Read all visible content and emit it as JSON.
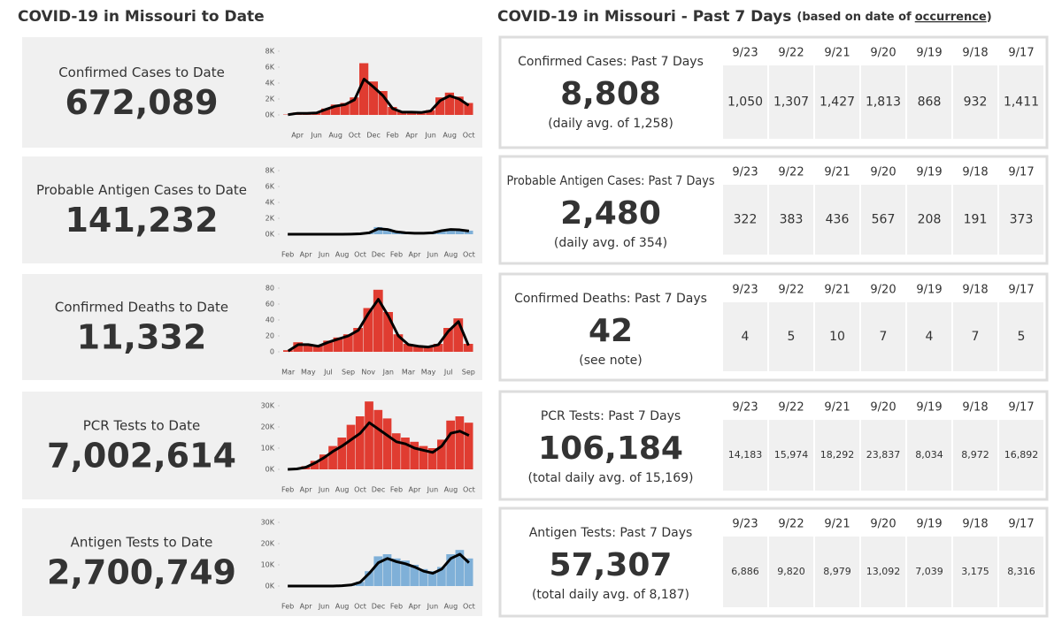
{
  "left_title": "COVID-19 in Missouri to Date",
  "right_title": "COVID-19 in Missouri - Past 7 Days",
  "right_subtitle": "(based on date of",
  "right_subtitle_link": "occurrence",
  "right_subtitle_end": ")",
  "panels": [
    {
      "label": "Confirmed Cases to Date",
      "total": "672,089"
    },
    {
      "label": "Probable Antigen Cases to Date",
      "total": "141,232"
    },
    {
      "label": "Confirmed Deaths to Date",
      "total": "11,332"
    },
    {
      "label": "PCR Tests to Date",
      "total": "7,002,614"
    },
    {
      "label": "Antigen Tests to Date",
      "total": "2,700,749"
    }
  ],
  "chart_data": [
    {
      "type": "bar",
      "categories": [
        null,
        "Apr",
        null,
        "Jun",
        null,
        "Aug",
        null,
        "Oct",
        null,
        "Dec",
        null,
        "Feb",
        null,
        "Apr",
        null,
        "Jun",
        null,
        "Aug",
        null,
        "Oct"
      ],
      "ylim": [
        0,
        8000
      ],
      "yticks": [
        {
          "value": 0,
          "label": "0K"
        },
        {
          "value": 2000,
          "label": "2K"
        },
        {
          "value": 4000,
          "label": "4K"
        },
        {
          "value": 6000,
          "label": "6K"
        },
        {
          "value": 8000,
          "label": "8K"
        }
      ],
      "series": [
        {
          "color": "#e03c31",
          "values": [
            50,
            300,
            250,
            300,
            800,
            1300,
            1500,
            2200,
            6500,
            4200,
            3000,
            1000,
            400,
            400,
            350,
            600,
            2200,
            2800,
            2300,
            1500
          ]
        },
        {
          "type": "line",
          "color": "#000000",
          "values": [
            30,
            200,
            200,
            250,
            700,
            1100,
            1300,
            1900,
            4500,
            3500,
            2400,
            800,
            350,
            350,
            300,
            500,
            1800,
            2400,
            2000,
            1200
          ]
        }
      ]
    },
    {
      "type": "bar",
      "categories": [
        "Feb",
        null,
        "Apr",
        null,
        "Jun",
        null,
        "Aug",
        null,
        "Oct",
        null,
        "Dec",
        null,
        "Feb",
        null,
        "Apr",
        null,
        "Jun",
        null,
        "Aug",
        null,
        "Oct"
      ],
      "ylim": [
        0,
        8000
      ],
      "yticks": [
        {
          "value": 0,
          "label": "0K"
        },
        {
          "value": 2000,
          "label": "2K"
        },
        {
          "value": 4000,
          "label": "4K"
        },
        {
          "value": 6000,
          "label": "6K"
        },
        {
          "value": 8000,
          "label": "8K"
        }
      ],
      "series": [
        {
          "color": "#7fb0d8",
          "values": [
            0,
            0,
            0,
            0,
            0,
            0,
            0,
            20,
            60,
            200,
            900,
            700,
            350,
            200,
            150,
            150,
            200,
            500,
            700,
            600,
            450
          ]
        },
        {
          "type": "line",
          "color": "#000000",
          "values": [
            0,
            0,
            0,
            0,
            0,
            0,
            0,
            15,
            50,
            180,
            700,
            600,
            300,
            180,
            130,
            130,
            180,
            450,
            600,
            550,
            400
          ]
        }
      ]
    },
    {
      "type": "bar",
      "categories": [
        "Mar",
        null,
        "May",
        null,
        "Jul",
        null,
        "Sep",
        null,
        "Nov",
        null,
        "Jan",
        null,
        "Mar",
        null,
        "May",
        null,
        "Jul",
        null,
        "Sep"
      ],
      "ylim": [
        0,
        80
      ],
      "yticks": [
        0,
        20,
        40,
        60,
        80
      ],
      "series": [
        {
          "color": "#e03c31",
          "values": [
            2,
            12,
            10,
            8,
            14,
            18,
            22,
            30,
            55,
            78,
            50,
            22,
            10,
            8,
            7,
            10,
            30,
            42,
            10
          ]
        },
        {
          "type": "line",
          "color": "#000000",
          "values": [
            1,
            9,
            9,
            7,
            12,
            16,
            20,
            27,
            48,
            66,
            45,
            20,
            9,
            7,
            6,
            9,
            26,
            38,
            8
          ]
        }
      ]
    },
    {
      "type": "bar",
      "categories": [
        "Feb",
        null,
        "Apr",
        null,
        "Jun",
        null,
        "Aug",
        null,
        "Oct",
        null,
        "Dec",
        null,
        "Feb",
        null,
        "Apr",
        null,
        "Jun",
        null,
        "Aug",
        null,
        "Oct"
      ],
      "ylim": [
        0,
        30000
      ],
      "yticks": [
        {
          "value": 0,
          "label": "0K"
        },
        {
          "value": 10000,
          "label": "10K"
        },
        {
          "value": 20000,
          "label": "20K"
        },
        {
          "value": 30000,
          "label": "30K"
        }
      ],
      "series": [
        {
          "color": "#e03c31",
          "values": [
            0,
            300,
            1500,
            4000,
            7000,
            11000,
            15000,
            21000,
            25000,
            32000,
            28000,
            24000,
            17000,
            15000,
            13000,
            11000,
            10000,
            14000,
            23000,
            25000,
            22000
          ]
        },
        {
          "type": "line",
          "color": "#000000",
          "values": [
            0,
            200,
            1000,
            3000,
            5500,
            8500,
            11000,
            14000,
            17000,
            22000,
            19000,
            16000,
            13000,
            12000,
            10000,
            9000,
            8000,
            11000,
            17000,
            18000,
            16000
          ]
        }
      ]
    },
    {
      "type": "bar",
      "categories": [
        "Feb",
        null,
        "Apr",
        null,
        "Jun",
        null,
        "Aug",
        null,
        "Oct",
        null,
        "Dec",
        null,
        "Feb",
        null,
        "Apr",
        null,
        "Jun",
        null,
        "Aug",
        null,
        "Oct"
      ],
      "ylim": [
        0,
        30000
      ],
      "yticks": [
        {
          "value": 0,
          "label": "0K"
        },
        {
          "value": 10000,
          "label": "10K"
        },
        {
          "value": 20000,
          "label": "20K"
        },
        {
          "value": 30000,
          "label": "30K"
        }
      ],
      "series": [
        {
          "color": "#7fb0d8",
          "values": [
            0,
            0,
            0,
            0,
            0,
            0,
            200,
            600,
            2000,
            7000,
            14000,
            15000,
            13000,
            12000,
            10000,
            8000,
            7000,
            9000,
            15000,
            17000,
            13000
          ]
        },
        {
          "type": "line",
          "color": "#000000",
          "values": [
            0,
            0,
            0,
            0,
            0,
            0,
            150,
            500,
            1800,
            6000,
            11000,
            13000,
            11500,
            10500,
            9000,
            7000,
            6000,
            8000,
            13000,
            15000,
            11000
          ]
        }
      ]
    }
  ],
  "week": [
    {
      "label": "Confirmed Cases: Past 7 Days",
      "total": "8,808",
      "note": "(daily avg. of 1,258)",
      "dates": [
        "9/23",
        "9/22",
        "9/21",
        "9/20",
        "9/19",
        "9/18",
        "9/17"
      ],
      "values": [
        "1,050",
        "1,307",
        "1,427",
        "1,813",
        "868",
        "932",
        "1,411"
      ]
    },
    {
      "label": "Probable Antigen Cases: Past 7 Days",
      "total": "2,480",
      "note": "(daily avg. of 354)",
      "dates": [
        "9/23",
        "9/22",
        "9/21",
        "9/20",
        "9/19",
        "9/18",
        "9/17"
      ],
      "values": [
        "322",
        "383",
        "436",
        "567",
        "208",
        "191",
        "373"
      ]
    },
    {
      "label": "Confirmed Deaths: Past 7 Days",
      "total": "42",
      "note": "(see note)",
      "dates": [
        "9/23",
        "9/22",
        "9/21",
        "9/20",
        "9/19",
        "9/18",
        "9/17"
      ],
      "values": [
        "4",
        "5",
        "10",
        "7",
        "4",
        "7",
        "5"
      ]
    },
    {
      "label": "PCR Tests: Past 7 Days",
      "total": "106,184",
      "note": "(total daily avg. of 15,169)",
      "dates": [
        "9/23",
        "9/22",
        "9/21",
        "9/20",
        "9/19",
        "9/18",
        "9/17"
      ],
      "values": [
        "14,183",
        "15,974",
        "18,292",
        "23,837",
        "8,034",
        "8,972",
        "16,892"
      ]
    },
    {
      "label": "Antigen Tests: Past 7 Days",
      "total": "57,307",
      "note": "(total daily avg. of 8,187)",
      "dates": [
        "9/23",
        "9/22",
        "9/21",
        "9/20",
        "9/19",
        "9/18",
        "9/17"
      ],
      "values": [
        "6,886",
        "9,820",
        "8,979",
        "13,092",
        "7,039",
        "3,175",
        "8,316"
      ]
    }
  ]
}
